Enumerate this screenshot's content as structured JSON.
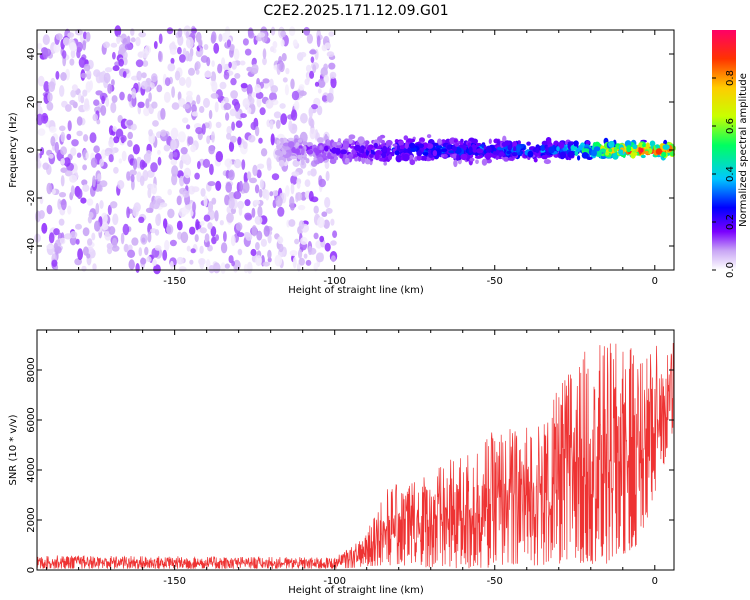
{
  "title": "C2E2.2025.171.12.09.G01",
  "chart_data": [
    {
      "type": "heatmap",
      "xlabel": "Height of straight line (km)",
      "ylabel": "Frequency (Hz)",
      "xlim": [
        -193,
        6
      ],
      "ylim": [
        -50,
        50
      ],
      "xticks": [
        -150,
        -100,
        -50,
        0
      ],
      "xtick_labels": [
        "-150",
        "-100",
        "-50",
        "0"
      ],
      "yticks": [
        -40,
        -20,
        0,
        20,
        40
      ],
      "ytick_labels": [
        "-40",
        "-20",
        "0",
        "20",
        "40"
      ],
      "colorbar": {
        "label": "Normalized spectral amplitude",
        "range": [
          0,
          1
        ],
        "ticks": [
          0.0,
          0.2,
          0.4,
          0.6,
          0.8
        ],
        "tick_labels": [
          "0.0",
          "0.2",
          "0.4",
          "0.6",
          "0.8"
        ],
        "colormap": [
          "#ffffff",
          "#c9a6f5",
          "#7a00ff",
          "#0000ff",
          "#00c8ff",
          "#00ff60",
          "#c8ff00",
          "#ffcc00",
          "#ff3300",
          "#ff0066"
        ]
      },
      "regions": [
        {
          "name": "noise",
          "x": [
            -193,
            -100
          ],
          "freq": [
            -50,
            50
          ],
          "amplitude": [
            0.0,
            0.2
          ]
        },
        {
          "name": "signal",
          "x": [
            -118,
            6
          ],
          "center_freq": 0,
          "half_width_hz": [
            4,
            8
          ],
          "amplitude_at_x": [
            [
              -118,
              0.15
            ],
            [
              -80,
              0.35
            ],
            [
              -30,
              0.45
            ],
            [
              -5,
              0.95
            ]
          ]
        }
      ]
    },
    {
      "type": "line",
      "xlabel": "Height of straight line (km)",
      "ylabel": "SNR (10 * v/v)",
      "xlim": [
        -193,
        6
      ],
      "ylim": [
        0,
        9600
      ],
      "xticks": [
        -150,
        -100,
        -50,
        0
      ],
      "xtick_labels": [
        "-150",
        "-100",
        "-50",
        "0"
      ],
      "yticks": [
        0,
        2000,
        4000,
        6000,
        8000
      ],
      "ytick_labels": [
        "0",
        "2000",
        "4000",
        "6000",
        "8000"
      ],
      "series": [
        {
          "color": "#ee3333",
          "envelope": [
            {
              "x": -193,
              "low": 50,
              "high": 600
            },
            {
              "x": -100,
              "low": 50,
              "high": 500
            },
            {
              "x": -92,
              "low": 100,
              "high": 1200
            },
            {
              "x": -85,
              "low": 200,
              "high": 3200
            },
            {
              "x": -70,
              "low": 100,
              "high": 4000
            },
            {
              "x": -58,
              "low": 50,
              "high": 4800
            },
            {
              "x": -50,
              "low": 100,
              "high": 5600
            },
            {
              "x": -35,
              "low": 200,
              "high": 6000
            },
            {
              "x": -25,
              "low": 300,
              "high": 8600
            },
            {
              "x": -15,
              "low": 200,
              "high": 9200
            },
            {
              "x": -5,
              "low": 1000,
              "high": 8800
            },
            {
              "x": 6,
              "low": 5500,
              "high": 9500
            }
          ]
        }
      ]
    }
  ]
}
